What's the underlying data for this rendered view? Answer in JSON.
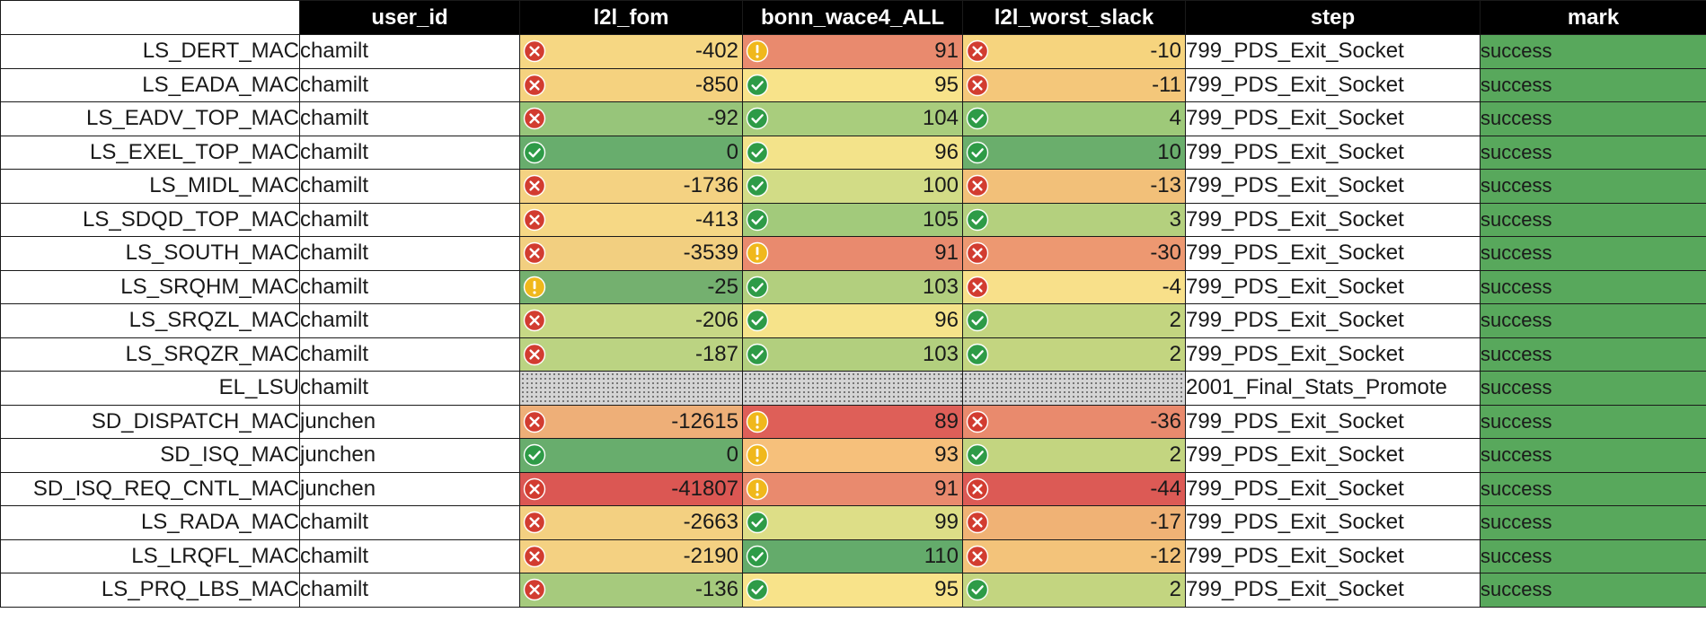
{
  "headers": {
    "c0": "",
    "user_id": "user_id",
    "l2l_fom": "l2l_fom",
    "bonn": "bonn_wace4_ALL",
    "slack": "l2l_worst_slack",
    "step": "step",
    "mark": "mark"
  },
  "colors": {
    "header_bg": "#000000",
    "bad": "#d23c30",
    "good": "#2e9b47",
    "warn": "#f0b81c",
    "mark_bg": "#58a85c"
  },
  "rows": [
    {
      "module": "LS_DERT_MAC",
      "user": "chamilt",
      "fom": {
        "value": "-402",
        "icon": "error-icon",
        "bg": "#f6d783"
      },
      "bonn": {
        "value": "91",
        "icon": "warning-icon",
        "bg": "#e98a6e"
      },
      "slack": {
        "value": "-10",
        "icon": "error-icon",
        "bg": "#f6d47e"
      },
      "step": "799_PDS_Exit_Socket",
      "mark": "success"
    },
    {
      "module": "LS_EADA_MAC",
      "user": "chamilt",
      "fom": {
        "value": "-850",
        "icon": "error-icon",
        "bg": "#f5d27f"
      },
      "bonn": {
        "value": "95",
        "icon": "check-icon",
        "bg": "#f8e38a"
      },
      "slack": {
        "value": "-11",
        "icon": "error-icon",
        "bg": "#f4c77a"
      },
      "step": "799_PDS_Exit_Socket",
      "mark": "success"
    },
    {
      "module": "LS_EADV_TOP_MAC",
      "user": "chamilt",
      "fom": {
        "value": "-92",
        "icon": "error-icon",
        "bg": "#97c57a"
      },
      "bonn": {
        "value": "104",
        "icon": "check-icon",
        "bg": "#a9cd7d"
      },
      "slack": {
        "value": "4",
        "icon": "check-icon",
        "bg": "#9ec979"
      },
      "step": "799_PDS_Exit_Socket",
      "mark": "success"
    },
    {
      "module": "LS_EXEL_TOP_MAC",
      "user": "chamilt",
      "fom": {
        "value": "0",
        "icon": "check-icon",
        "bg": "#68ad6d"
      },
      "bonn": {
        "value": "96",
        "icon": "check-icon",
        "bg": "#f3e38a"
      },
      "slack": {
        "value": "10",
        "icon": "check-icon",
        "bg": "#6aae6c"
      },
      "step": "799_PDS_Exit_Socket",
      "mark": "success"
    },
    {
      "module": "LS_MIDL_MAC",
      "user": "chamilt",
      "fom": {
        "value": "-1736",
        "icon": "error-icon",
        "bg": "#f4d282"
      },
      "bonn": {
        "value": "100",
        "icon": "check-icon",
        "bg": "#d2dc86"
      },
      "slack": {
        "value": "-13",
        "icon": "error-icon",
        "bg": "#f2c079"
      },
      "step": "799_PDS_Exit_Socket",
      "mark": "success"
    },
    {
      "module": "LS_SDQD_TOP_MAC",
      "user": "chamilt",
      "fom": {
        "value": "-413",
        "icon": "error-icon",
        "bg": "#f6d885"
      },
      "bonn": {
        "value": "105",
        "icon": "check-icon",
        "bg": "#a2ca7b"
      },
      "slack": {
        "value": "3",
        "icon": "check-icon",
        "bg": "#b4d07e"
      },
      "step": "799_PDS_Exit_Socket",
      "mark": "success"
    },
    {
      "module": "LS_SOUTH_MAC",
      "user": "chamilt",
      "fom": {
        "value": "-3539",
        "icon": "error-icon",
        "bg": "#f2cf80"
      },
      "bonn": {
        "value": "91",
        "icon": "warning-icon",
        "bg": "#e98a6e"
      },
      "slack": {
        "value": "-30",
        "icon": "error-icon",
        "bg": "#ed9871"
      },
      "step": "799_PDS_Exit_Socket",
      "mark": "success"
    },
    {
      "module": "LS_SRQHM_MAC",
      "user": "chamilt",
      "fom": {
        "value": "-25",
        "icon": "warning-icon",
        "bg": "#74b06f"
      },
      "bonn": {
        "value": "103",
        "icon": "check-icon",
        "bg": "#b2cf7e"
      },
      "slack": {
        "value": "-4",
        "icon": "error-icon",
        "bg": "#f8e08a"
      },
      "step": "799_PDS_Exit_Socket",
      "mark": "success"
    },
    {
      "module": "LS_SRQZL_MAC",
      "user": "chamilt",
      "fom": {
        "value": "-206",
        "icon": "error-icon",
        "bg": "#c7d885"
      },
      "bonn": {
        "value": "96",
        "icon": "check-icon",
        "bg": "#f6e38a"
      },
      "slack": {
        "value": "2",
        "icon": "check-icon",
        "bg": "#c3d580"
      },
      "step": "799_PDS_Exit_Socket",
      "mark": "success"
    },
    {
      "module": "LS_SRQZR_MAC",
      "user": "chamilt",
      "fom": {
        "value": "-187",
        "icon": "error-icon",
        "bg": "#bbd382"
      },
      "bonn": {
        "value": "103",
        "icon": "check-icon",
        "bg": "#b2cf7e"
      },
      "slack": {
        "value": "2",
        "icon": "check-icon",
        "bg": "#c3d580"
      },
      "step": "799_PDS_Exit_Socket",
      "mark": "success"
    },
    {
      "module": "EL_LSU",
      "user": "chamilt",
      "fom": null,
      "bonn": null,
      "slack": null,
      "step": "2001_Final_Stats_Promote",
      "mark": "success"
    },
    {
      "module": "SD_DISPATCH_MAC",
      "user": "junchen",
      "fom": {
        "value": "-12615",
        "icon": "error-icon",
        "bg": "#eeaf78"
      },
      "bonn": {
        "value": "89",
        "icon": "warning-icon",
        "bg": "#de5f58"
      },
      "slack": {
        "value": "-36",
        "icon": "error-icon",
        "bg": "#e98a6d"
      },
      "step": "799_PDS_Exit_Socket",
      "mark": "success"
    },
    {
      "module": "SD_ISQ_MAC",
      "user": "junchen",
      "fom": {
        "value": "0",
        "icon": "check-icon",
        "bg": "#68ad6d"
      },
      "bonn": {
        "value": "93",
        "icon": "warning-icon",
        "bg": "#f6c07b"
      },
      "slack": {
        "value": "2",
        "icon": "check-icon",
        "bg": "#c3d580"
      },
      "step": "799_PDS_Exit_Socket",
      "mark": "success"
    },
    {
      "module": "SD_ISQ_REQ_CNTL_MAC",
      "user": "junchen",
      "fom": {
        "value": "-41807",
        "icon": "error-icon",
        "bg": "#db5753"
      },
      "bonn": {
        "value": "91",
        "icon": "warning-icon",
        "bg": "#e98a6e"
      },
      "slack": {
        "value": "-44",
        "icon": "error-icon",
        "bg": "#dc5a55"
      },
      "step": "799_PDS_Exit_Socket",
      "mark": "success"
    },
    {
      "module": "LS_RADA_MAC",
      "user": "chamilt",
      "fom": {
        "value": "-2663",
        "icon": "error-icon",
        "bg": "#f3d081"
      },
      "bonn": {
        "value": "99",
        "icon": "check-icon",
        "bg": "#ddde87"
      },
      "slack": {
        "value": "-17",
        "icon": "error-icon",
        "bg": "#f0b275"
      },
      "step": "799_PDS_Exit_Socket",
      "mark": "success"
    },
    {
      "module": "LS_LRQFL_MAC",
      "user": "chamilt",
      "fom": {
        "value": "-2190",
        "icon": "error-icon",
        "bg": "#f4d182"
      },
      "bonn": {
        "value": "110",
        "icon": "check-icon",
        "bg": "#64ab6b"
      },
      "slack": {
        "value": "-12",
        "icon": "error-icon",
        "bg": "#f3c37a"
      },
      "step": "799_PDS_Exit_Socket",
      "mark": "success"
    },
    {
      "module": "LS_PRQ_LBS_MAC",
      "user": "chamilt",
      "fom": {
        "value": "-136",
        "icon": "error-icon",
        "bg": "#a6ca7d"
      },
      "bonn": {
        "value": "95",
        "icon": "check-icon",
        "bg": "#f8e38a"
      },
      "slack": {
        "value": "2",
        "icon": "check-icon",
        "bg": "#c3d580"
      },
      "step": "799_PDS_Exit_Socket",
      "mark": "success"
    }
  ]
}
